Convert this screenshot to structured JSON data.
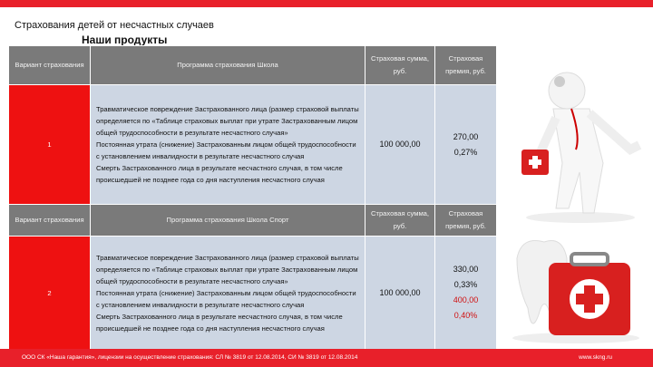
{
  "page": {
    "title": "Страхования детей от несчастных случаев",
    "subtitle": "Наши продукты"
  },
  "table1": {
    "headers": [
      "Вариант страхования",
      "Программа страхования Школа",
      "Страховая сумма, руб.",
      "Страховая премия, руб."
    ],
    "row": {
      "variant": "1",
      "program": [
        "Травматическое повреждение Застрахованного лица (размер страховой выплаты определяется по «Таблице страховых выплат при утрате Застрахованным лицом общей трудоспособности в результате несчастного случая»",
        "Постоянная утрата (снижение) Застрахованным лицом общей трудоспособности с установлением инвалидности в результате несчастного случая",
        "Смерть Застрахованного лица в результате несчастного случая, в том числе происшедшей не позднее года со дня наступления несчастного случая"
      ],
      "sum": "100 000,00",
      "premium": "270,00",
      "rate": "0,27%"
    }
  },
  "table2": {
    "headers": [
      "Вариант страхования",
      "Программа страхования Школа Спорт",
      "Страховая сумма, руб.",
      "Страховая премия, руб."
    ],
    "row": {
      "variant": "2",
      "program": [
        "Травматическое повреждение Застрахованного лица (размер страховой выплаты определяется по «Таблице страховых выплат при утрате Застрахованным лицом общей трудоспособности в результате несчастного случая»",
        "Постоянная утрата (снижение) Застрахованным лицом общей трудоспособности с установлением инвалидности в результате несчастного случая",
        "Смерть Застрахованного лица в результате несчастного случая, в том числе происшедшей не позднее года со дня наступления несчастного случая"
      ],
      "sum": "100 000,00",
      "premium": "330,00",
      "rate": "0,33%",
      "premium_alt": "400,00",
      "rate_alt": "0,40%"
    }
  },
  "footer": {
    "license": "ООО СК «Наша гарантия», лицензии на осуществление страхования: СЛ № 3819 от 12.08.2014, СИ № 3819 от 12.08.2014",
    "site": "www.skng.ru"
  },
  "colors": {
    "brand": "#e8202a",
    "header": "#7a7a7a",
    "cell": "#cdd6e3"
  }
}
